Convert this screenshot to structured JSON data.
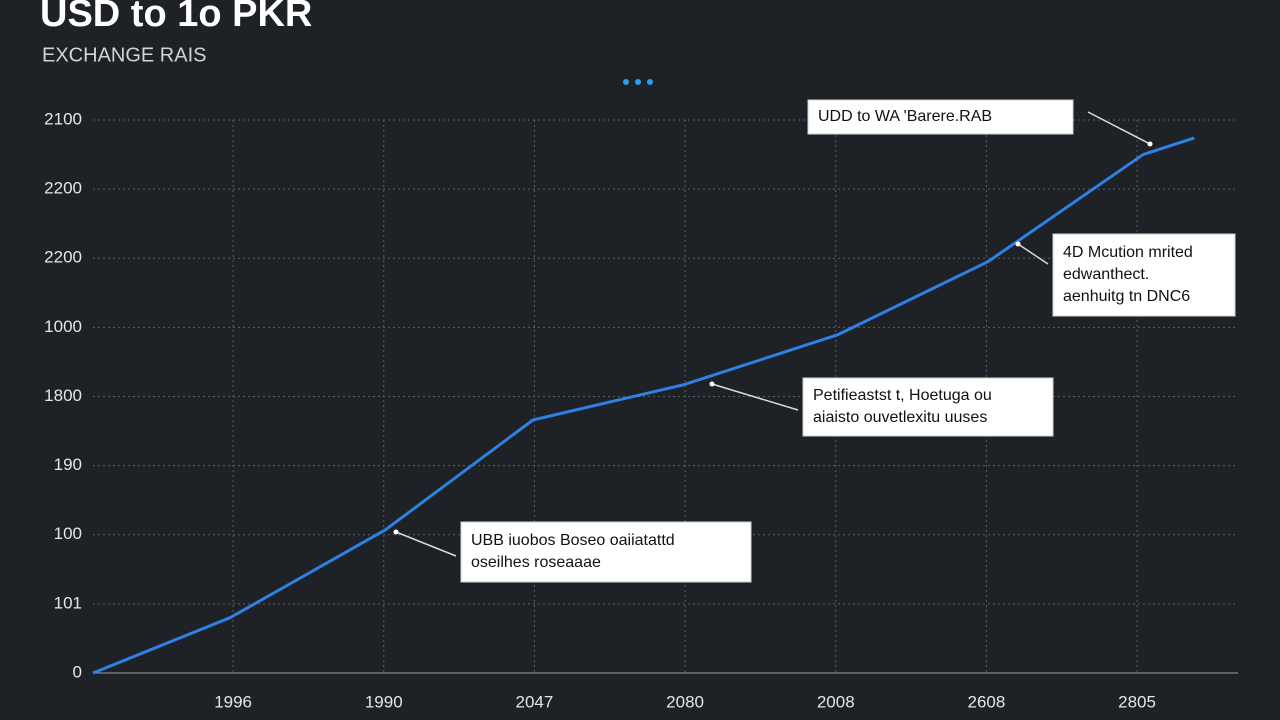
{
  "chart_data": {
    "type": "line",
    "title": "USD to 1o PKR",
    "subtitle": "EXCHANGE RAIS",
    "x": [
      0.07,
      0.98,
      2.01,
      2.99,
      3.99,
      5.01,
      6.01,
      7.04,
      7.38
    ],
    "series": [
      {
        "name": null,
        "color": "#2f80e4",
        "values": [
          0,
          0.8,
          2.07,
          3.66,
          4.17,
          4.89,
          5.95,
          7.5,
          7.74
        ]
      }
    ],
    "xlim": [
      0.07,
      7.67
    ],
    "xticks": [
      {
        "value": 1,
        "label": "1996"
      },
      {
        "value": 2,
        "label": "1990"
      },
      {
        "value": 3,
        "label": "2047"
      },
      {
        "value": 4,
        "label": "2080"
      },
      {
        "value": 5,
        "label": "2008"
      },
      {
        "value": 6,
        "label": "2608"
      },
      {
        "value": 7,
        "label": "2805"
      }
    ],
    "ylim": [
      0,
      8
    ],
    "yticks": [
      0,
      {
        "value": 1,
        "label": "101"
      },
      {
        "value": 2,
        "label": "100"
      },
      {
        "value": 3,
        "label": "190"
      },
      {
        "value": 4,
        "label": "1800"
      },
      {
        "value": 5,
        "label": "1000"
      },
      {
        "value": 6,
        "label": "2200"
      },
      {
        "value": 7,
        "label": "2200"
      },
      {
        "value": 8,
        "label": "2100"
      }
    ],
    "grid": true,
    "annotations": [
      {
        "lines": [
          "UDD to WA 'Barere.RAB"
        ]
      },
      {
        "lines": [
          "4D Mcution mrited",
          "edwanthect.",
          "aenhuitg tn DNC6"
        ]
      },
      {
        "lines": [
          "Petifieastst t, Hoetuga ou",
          "aiaisto ouvetlexitu uuses"
        ]
      },
      {
        "lines": [
          "UBB iuobos Boseo oaiiatattd",
          "oseilhes roseaaae"
        ]
      }
    ]
  }
}
